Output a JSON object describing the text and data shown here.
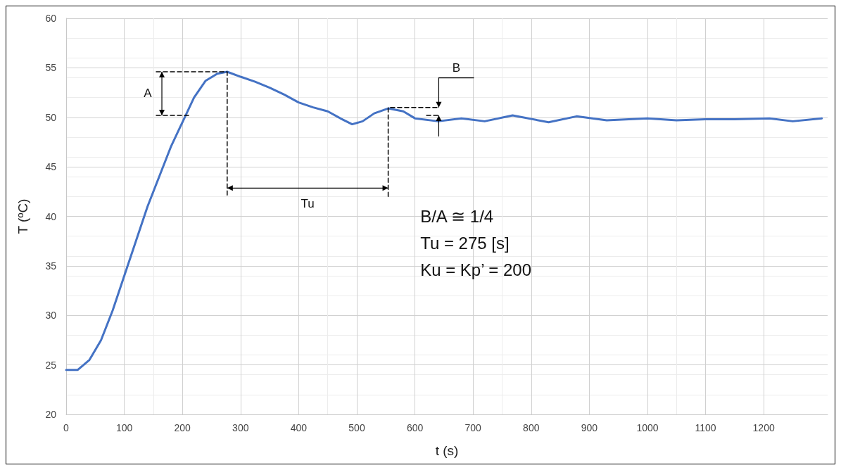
{
  "chart_data": {
    "type": "line",
    "xlabel": "t (s)",
    "ylabel": "T (ºC)",
    "xlim": [
      0,
      1310
    ],
    "xticks": [
      0,
      100,
      200,
      300,
      400,
      500,
      600,
      700,
      800,
      900,
      1000,
      1100,
      1200
    ],
    "ylim": [
      20,
      60
    ],
    "yticks": [
      20,
      25,
      30,
      35,
      40,
      45,
      50,
      55,
      60
    ],
    "grid": true,
    "marker": "none",
    "line_style": "solid",
    "series": [
      {
        "color": "#4472c4",
        "x": [
          0,
          20,
          40,
          60,
          80,
          100,
          120,
          140,
          160,
          180,
          200,
          220,
          240,
          260,
          277,
          300,
          325,
          350,
          375,
          400,
          425,
          450,
          475,
          492,
          510,
          530,
          554,
          580,
          600,
          640,
          680,
          720,
          768,
          830,
          878,
          930,
          1000,
          1050,
          1100,
          1150,
          1210,
          1250,
          1300
        ],
        "values": [
          24.5,
          24.5,
          25.5,
          27.5,
          30.5,
          34,
          37.5,
          41,
          44,
          47,
          49.5,
          52,
          53.7,
          54.4,
          54.6,
          54.1,
          53.6,
          53,
          52.3,
          51.5,
          51,
          50.6,
          49.8,
          49.3,
          49.6,
          50.4,
          50.9,
          50.6,
          49.9,
          49.6,
          49.9,
          49.6,
          50.2,
          49.5,
          50.1,
          49.7,
          49.9,
          49.7,
          49.8,
          49.8,
          49.9,
          49.6,
          49.9
        ]
      },
      {
        "type": "line",
        "color": "#000000",
        "line_style": "dashed",
        "x": [
          155,
          277,
          277
        ],
        "values": [
          54.6,
          54.6,
          42
        ]
      },
      {
        "type": "line",
        "color": "#000000",
        "line_style": "dashed",
        "x": [
          155,
          215
        ],
        "values": [
          50.2,
          50.2
        ]
      },
      {
        "type": "line",
        "color": "#000000",
        "line_style": "dashed",
        "x": [
          554,
          554,
          641
        ],
        "values": [
          42,
          51,
          51
        ]
      },
      {
        "type": "line",
        "color": "#000000",
        "line_style": "dashed",
        "x": [
          620,
          641
        ],
        "values": [
          50.2,
          50.2
        ]
      }
    ],
    "annotations": [
      "A",
      {
        "text": "B",
        "x": 641,
        "y": 51
      },
      "Tu",
      "B/A ≅ 1/4",
      "Tu = 275 [s]",
      "Ku = Kp’ = 200"
    ]
  }
}
